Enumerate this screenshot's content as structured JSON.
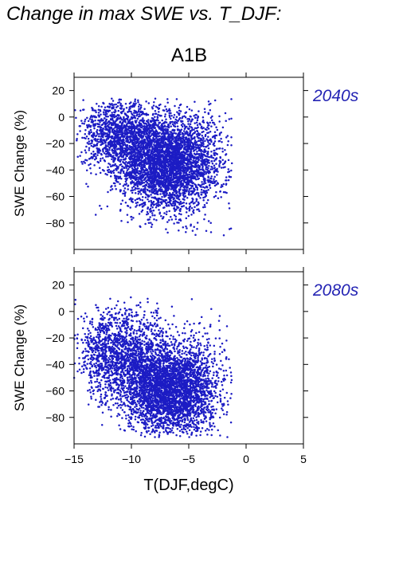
{
  "title": "Change in max SWE vs. T_DJF:",
  "scenario": "A1B",
  "colors": {
    "points": "#1c1cc4",
    "period_label": "#2424b4",
    "axis": "#000000"
  },
  "chart_data": [
    {
      "type": "scatter",
      "period": "2040s",
      "xlabel": "T(DJF,degC)",
      "ylabel": "SWE Change (%)",
      "xlim": [
        -15,
        5
      ],
      "ylim": [
        -100,
        30
      ],
      "x_ticks": [
        -15,
        -10,
        -5,
        0,
        5
      ],
      "y_ticks": [
        20,
        0,
        -20,
        -40,
        -60,
        -80
      ],
      "y_tick_labels": [
        "20",
        "0",
        "−20",
        "−40",
        "−60",
        "−80"
      ],
      "x_tick_labels_shown": false,
      "clusters": [
        {
          "cx": -7.0,
          "cy": -38,
          "sx": 1.9,
          "sy": 17,
          "n": 2600
        },
        {
          "cx": -9.5,
          "cy": -18,
          "sx": 1.8,
          "sy": 14,
          "n": 1200
        },
        {
          "cx": -12.0,
          "cy": -12,
          "sx": 1.2,
          "sy": 12,
          "n": 500
        },
        {
          "cx": -4.5,
          "cy": -30,
          "sx": 1.6,
          "sy": 20,
          "n": 700
        }
      ],
      "x_range_points": [
        -15,
        -1.2
      ],
      "y_range_points": [
        -90,
        14
      ]
    },
    {
      "type": "scatter",
      "period": "2080s",
      "xlabel": "T(DJF,degC)",
      "ylabel": "SWE Change (%)",
      "xlim": [
        -15,
        5
      ],
      "ylim": [
        -100,
        30
      ],
      "x_ticks": [
        -15,
        -10,
        -5,
        0,
        5
      ],
      "x_tick_labels": [
        "−15",
        "−10",
        "−5",
        "0",
        "5"
      ],
      "y_ticks": [
        20,
        0,
        -20,
        -40,
        -60,
        -80
      ],
      "y_tick_labels": [
        "20",
        "0",
        "−20",
        "−40",
        "−60",
        "−80"
      ],
      "clusters": [
        {
          "cx": -7.0,
          "cy": -60,
          "sx": 1.8,
          "sy": 16,
          "n": 2600
        },
        {
          "cx": -10.0,
          "cy": -35,
          "sx": 1.9,
          "sy": 18,
          "n": 1300
        },
        {
          "cx": -12.5,
          "cy": -30,
          "sx": 1.0,
          "sy": 15,
          "n": 400
        },
        {
          "cx": -4.3,
          "cy": -55,
          "sx": 1.4,
          "sy": 20,
          "n": 700
        }
      ],
      "x_range_points": [
        -15,
        -1.2
      ],
      "y_range_points": [
        -95,
        12
      ]
    }
  ]
}
